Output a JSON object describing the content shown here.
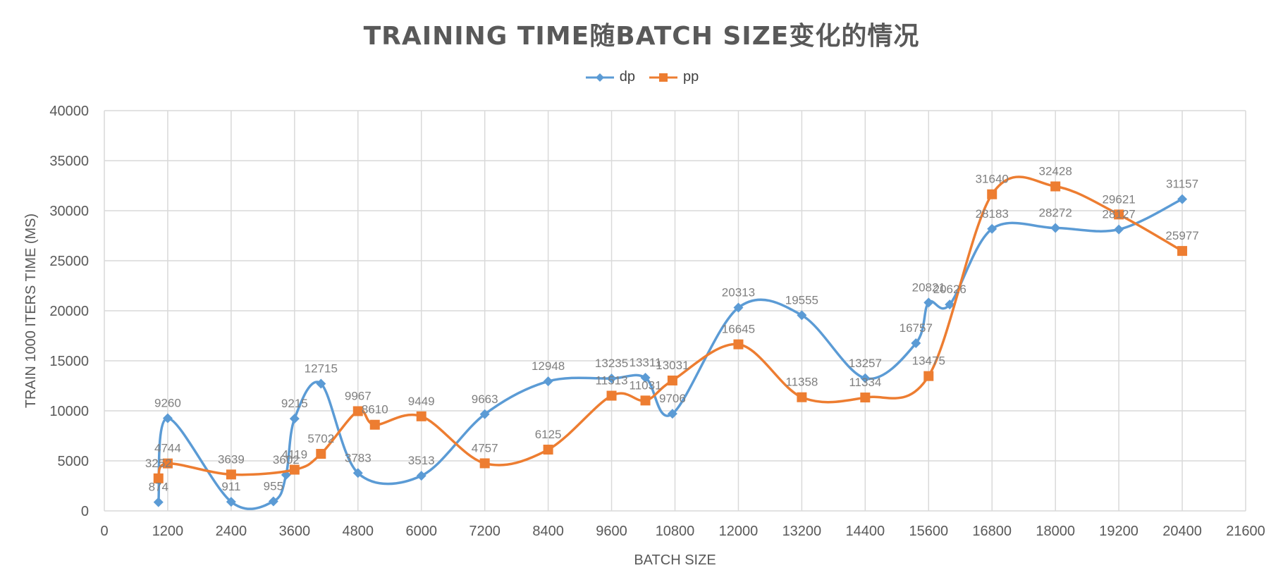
{
  "chart_data": {
    "type": "scatter",
    "title": "TRAINING TIME随BATCH SIZE变化的情况",
    "xlabel": "BATCH SIZE",
    "ylabel": "TRAIN 1000 ITERS TIME (MS)",
    "xlim": [
      0,
      21600
    ],
    "ylim": [
      0,
      40000
    ],
    "x_ticks": [
      "0",
      "1200",
      "2400",
      "3600",
      "4800",
      "6000",
      "7200",
      "8400",
      "9600",
      "10800",
      "12000",
      "13200",
      "14400",
      "15600",
      "16800",
      "18000",
      "19200",
      "20400",
      "21600"
    ],
    "y_ticks": [
      "0",
      "5000",
      "10000",
      "15000",
      "20000",
      "25000",
      "30000",
      "35000",
      "40000"
    ],
    "grid": true,
    "legend_position": "top",
    "smooth": true,
    "series": [
      {
        "name": "dp",
        "color": "#5b9bd5",
        "marker": "diamond",
        "x": [
          1024,
          1200,
          2400,
          3200,
          3440,
          3600,
          4100,
          4800,
          6000,
          7200,
          8400,
          9600,
          10240,
          10752,
          12000,
          13200,
          14400,
          15360,
          15600,
          16000,
          16800,
          18000,
          19200,
          20400
        ],
        "y": [
          874,
          9260,
          911,
          955,
          3602,
          9215,
          12715,
          3783,
          3513,
          9663,
          12948,
          13235,
          13311,
          9706,
          20313,
          19555,
          13257,
          16757,
          20821,
          20626,
          28183,
          28272,
          28127,
          31157
        ],
        "labels": [
          "874",
          "9260",
          "911",
          "955",
          "3602",
          "9215",
          "12715",
          "3783",
          "3513",
          "9663",
          "12948",
          "13235",
          "13311",
          "9706",
          "20313",
          "19555",
          "13257",
          "16757",
          "20821",
          "20626",
          "28183",
          "28272",
          "28127",
          "31157"
        ]
      },
      {
        "name": "pp",
        "color": "#ed7d31",
        "marker": "square",
        "x": [
          1024,
          1200,
          2400,
          3600,
          4100,
          4800,
          5120,
          6000,
          7200,
          8400,
          9600,
          10240,
          10752,
          12000,
          13200,
          14400,
          15600,
          16800,
          18000,
          19200,
          20400
        ],
        "y": [
          3252,
          4744,
          3639,
          4119,
          5702,
          9967,
          8610,
          9449,
          4757,
          6125,
          11513,
          11031,
          13031,
          16645,
          11358,
          11334,
          13475,
          31640,
          32428,
          29621,
          25977
        ],
        "labels": [
          "3252",
          "4744",
          "3639",
          "4119",
          "5702",
          "9967",
          "8610",
          "9449",
          "4757",
          "6125",
          "11513",
          "11031",
          "13031",
          "16645",
          "11358",
          "11334",
          "13475",
          "31640",
          "32428",
          "29621",
          "25977"
        ]
      }
    ]
  }
}
